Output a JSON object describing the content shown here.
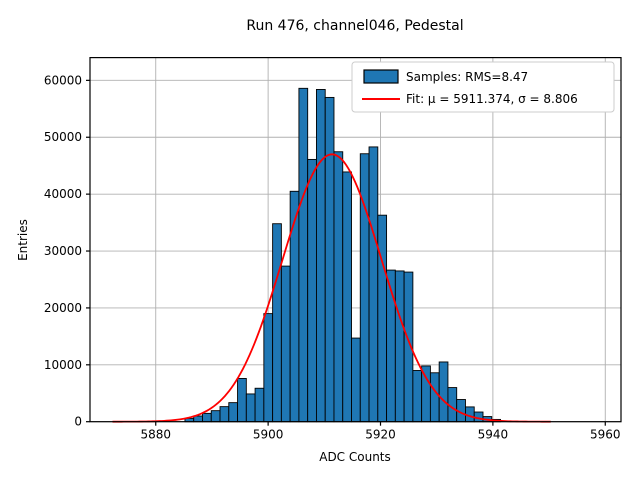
{
  "title": "Run 476, channel046, Pedestal",
  "axes": {
    "xlabel": "ADC Counts",
    "ylabel": "Entries",
    "x_ticks": [
      5880,
      5900,
      5920,
      5940,
      5960
    ],
    "y_ticks": [
      0,
      10000,
      20000,
      30000,
      40000,
      50000,
      60000
    ],
    "xlim": [
      5868.3,
      5962.8
    ],
    "ylim": [
      0,
      64000
    ],
    "grid": true
  },
  "legend": {
    "position": "upper right",
    "entries": [
      {
        "label": "Samples: RMS=8.47",
        "marker": "patch",
        "color": "#1f77b4"
      },
      {
        "label": "Fit: μ = 5911.374, σ = 8.806",
        "marker": "line",
        "color": "#ff0000"
      }
    ]
  },
  "chart_data": {
    "type": "bar",
    "subtype": "histogram-with-gaussian-fit",
    "title": "Run 476, channel046, Pedestal",
    "xlabel": "ADC Counts",
    "ylabel": "Entries",
    "xlim": [
      5868.3,
      5962.8
    ],
    "ylim": [
      0,
      64000
    ],
    "bar_color": "#1f77b4",
    "bar_edge_color": "#000000",
    "bin_start": 5885.2,
    "bin_width": 1.56,
    "counts": [
      590,
      1000,
      1470,
      1940,
      2650,
      3350,
      7600,
      4880,
      5880,
      19000,
      34800,
      27350,
      40500,
      58600,
      46100,
      58400,
      57000,
      47450,
      43900,
      14700,
      47100,
      48300,
      36300,
      26650,
      26500,
      26300,
      9000,
      9800,
      8600,
      10500,
      6000,
      3900,
      2600,
      1700,
      900,
      400
    ],
    "fit_curve": {
      "name": "gaussian",
      "color": "#ff0000",
      "mu": 5911.374,
      "sigma": 8.806,
      "amplitude": 47000,
      "rms_label_value": 8.47,
      "x_min": 5872.3,
      "x_max": 5950.5
    }
  },
  "colors": {
    "grid": "#b0b0b0",
    "spine": "#000000",
    "background": "#ffffff",
    "histogram": "#1f77b4",
    "fit": "#ff0000"
  }
}
